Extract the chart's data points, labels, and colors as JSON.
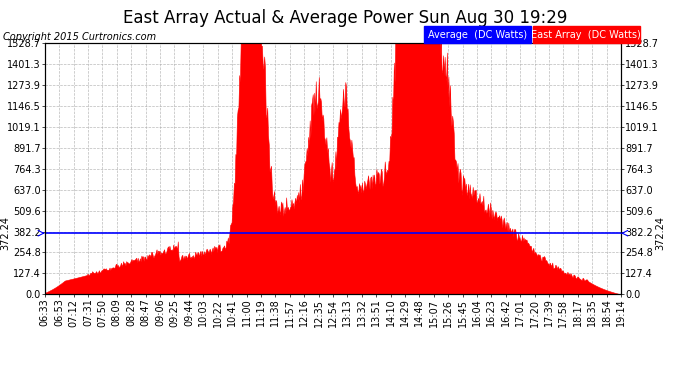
{
  "title": "East Array Actual & Average Power Sun Aug 30 19:29",
  "copyright": "Copyright 2015 Curtronics.com",
  "legend_labels": [
    "Average  (DC Watts)",
    "East Array  (DC Watts)"
  ],
  "avg_value": 372.24,
  "avg_label": "372.24",
  "y_max": 1528.7,
  "y_ticks": [
    0.0,
    127.4,
    254.8,
    382.2,
    509.6,
    637.0,
    764.3,
    891.7,
    1019.1,
    1146.5,
    1273.9,
    1401.3,
    1528.7
  ],
  "x_labels": [
    "06:33",
    "06:53",
    "07:12",
    "07:31",
    "07:50",
    "08:09",
    "08:28",
    "08:47",
    "09:06",
    "09:25",
    "09:44",
    "10:03",
    "10:22",
    "10:41",
    "11:00",
    "11:19",
    "11:38",
    "11:57",
    "12:16",
    "12:35",
    "12:54",
    "13:13",
    "13:32",
    "13:51",
    "14:10",
    "14:29",
    "14:48",
    "15:07",
    "15:26",
    "15:45",
    "16:04",
    "16:23",
    "16:42",
    "17:01",
    "17:20",
    "17:39",
    "17:58",
    "18:17",
    "18:35",
    "18:54",
    "19:14"
  ],
  "bg_color": "#ffffff",
  "grid_color": "#aaaaaa",
  "fill_color": "#ff0000",
  "avg_line_color": "#0000ff",
  "title_fontsize": 12,
  "tick_fontsize": 7,
  "copyright_fontsize": 7,
  "legend_fontsize": 7,
  "annotation_fontsize": 7
}
